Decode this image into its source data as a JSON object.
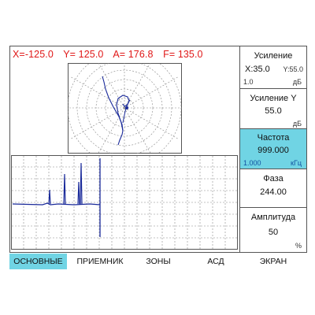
{
  "readout": {
    "x": "X=-125.0",
    "y": "Y= 125.0",
    "a": "A= 176.8",
    "f": "F= 135.0"
  },
  "panels": [
    {
      "title": "Усиление",
      "value": "X:35.0",
      "value_secondary": "Y:55.0",
      "min": "1.0",
      "unit": "дБ"
    },
    {
      "title": "Усиление Y",
      "value": "55.0",
      "unit": "дБ"
    },
    {
      "title": "Частота",
      "value": "999.000",
      "min": "1.000",
      "unit": "кГц",
      "active": true
    },
    {
      "title": "Фаза",
      "value": "244.00"
    },
    {
      "title": "Амплитуда",
      "value": "50",
      "unit": "%"
    }
  ],
  "tabs": [
    {
      "label": "ОСНОВНЫЕ",
      "active": true
    },
    {
      "label": "ПРИЕМНИК"
    },
    {
      "label": "ЗОНЫ"
    },
    {
      "label": "АСД"
    },
    {
      "label": "ЭКРАН"
    }
  ],
  "colors": {
    "readout_text": "#e01818",
    "trace": "#1a2a9a",
    "grid": "#888888",
    "highlight": "#70d4e4"
  }
}
